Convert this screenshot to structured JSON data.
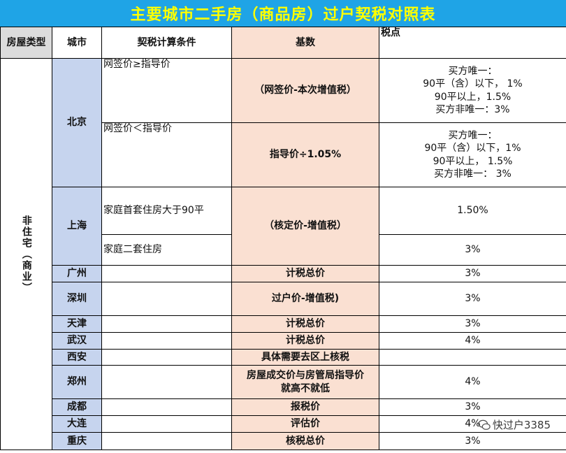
{
  "title": "主要城市二手房（商品房）过户契税对照表",
  "header": {
    "type": "房屋类型",
    "city": "城市",
    "condition": "契税计算条件",
    "base": "基数",
    "rate": "税点"
  },
  "type_label": "非住宅（商业）",
  "rows": {
    "beijing": {
      "city": "北京",
      "cond1": "网签价≥指导价",
      "base1": "（网签价-本次增值税）",
      "rate1": [
        "买方唯一：",
        "90平（含）以下， 1%",
        "90平以上，1.5%",
        "买方非唯一：3%"
      ],
      "cond2": "网签价＜指导价",
      "base2": "指导价÷1.05%",
      "rate2": [
        "买方唯一：",
        "90平（含）以下，1%",
        "90平以上， 1.5%",
        "买方非唯一： 3%"
      ]
    },
    "shanghai": {
      "city": "上海",
      "cond1": "家庭首套住房大于90平",
      "rate1": "1.50%",
      "base": "（核定价-增值税）",
      "cond2": "家庭二套住房",
      "rate2": "3%"
    },
    "guangzhou": {
      "city": "广州",
      "base": "计税总价",
      "rate": "3%"
    },
    "shenzhen": {
      "city": "深圳",
      "base": "过户价-增值税)",
      "rate": "3%"
    },
    "tianjin": {
      "city": "天津",
      "base": "计税总价",
      "rate": "3%"
    },
    "wuhan": {
      "city": "武汉",
      "base": "计税总价",
      "rate": "4%"
    },
    "xian": {
      "city": "西安",
      "base": "具体需要去区上核税",
      "rate": ""
    },
    "zhengzhou": {
      "city": "郑州",
      "base1": "房屋成交价与房管局指导价",
      "base2": "就高不就低",
      "rate": "4%"
    },
    "chengdu": {
      "city": "成都",
      "base": "报税价",
      "rate": "3%"
    },
    "dalian": {
      "city": "大连",
      "base": "评估价",
      "rate": "4%"
    },
    "chongqing": {
      "city": "重庆",
      "base": "核税总价",
      "rate": "3%"
    }
  },
  "watermark": "快过户3385",
  "colors": {
    "title_bg": "#1FA4E6",
    "title_text": "#FFFF00",
    "city_bg": "#C6D4EE",
    "base_bg": "#FAE0D2",
    "header_type_bg": "#DCDCDC"
  }
}
